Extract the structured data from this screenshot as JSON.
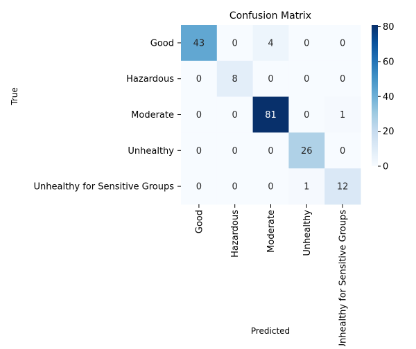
{
  "chart_data": {
    "type": "heatmap",
    "title": "Confusion Matrix",
    "xlabel": "Predicted",
    "ylabel": "True",
    "x_categories": [
      "Good",
      "Hazardous",
      "Moderate",
      "Unhealthy",
      "Unhealthy for Sensitive Groups"
    ],
    "y_categories": [
      "Good",
      "Hazardous",
      "Moderate",
      "Unhealthy",
      "Unhealthy for Sensitive Groups"
    ],
    "values": [
      [
        43,
        0,
        4,
        0,
        0
      ],
      [
        0,
        8,
        0,
        0,
        0
      ],
      [
        0,
        0,
        81,
        0,
        1
      ],
      [
        0,
        0,
        0,
        26,
        0
      ],
      [
        0,
        0,
        0,
        1,
        12
      ]
    ],
    "colormap": "Blues",
    "colorbar": {
      "range": [
        0,
        81
      ],
      "ticks": [
        0,
        20,
        40,
        60,
        80
      ]
    },
    "annotations": true
  }
}
